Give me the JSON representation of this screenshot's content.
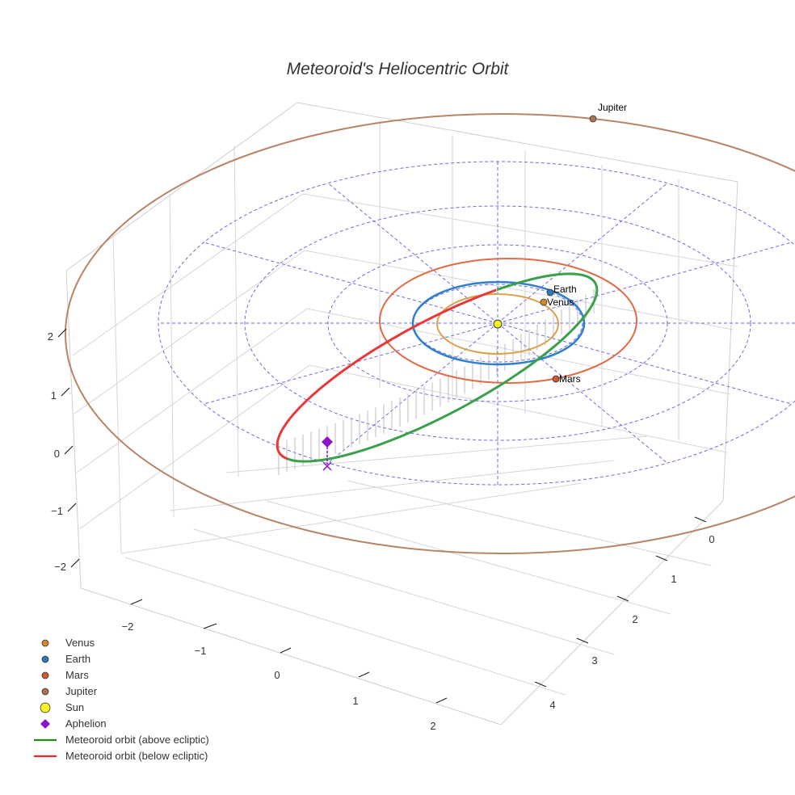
{
  "chart_data": {
    "type": "scatter3d",
    "title": "Meteoroid's Heliocentric Orbit",
    "axes": {
      "x": {
        "ticks": [
          -2,
          -1,
          0,
          1,
          2
        ]
      },
      "y": {
        "ticks": [
          0,
          1,
          2,
          3,
          4
        ]
      },
      "z": {
        "ticks": [
          2,
          1,
          0,
          -1,
          -2
        ]
      }
    },
    "grid": true,
    "legend_position": "bottom-left",
    "planets": [
      {
        "name": "Venus",
        "label": "Venus",
        "color": "#d4872a"
      },
      {
        "name": "Earth",
        "label": "Earth",
        "color": "#2a7bbd"
      },
      {
        "name": "Mars",
        "label": "Mars",
        "color": "#d1572c"
      },
      {
        "name": "Jupiter",
        "label": "Jupiter",
        "color": "#b0714f"
      }
    ],
    "orbit_colors": {
      "Venus": "#d9a24b",
      "Earth": "#2f7fcf",
      "Mars": "#e06b45",
      "Jupiter": "#b88466",
      "above": "#3aa04a",
      "below": "#e8383a",
      "reference_grid": "#6a6ae8"
    },
    "sun": {
      "label": "Sun",
      "color": "#f5f022"
    },
    "aphelion": {
      "label": "Aphelion",
      "color": "#8a16c9"
    },
    "legend": [
      {
        "label": "Venus",
        "kind": "dot",
        "color": "#d4872a"
      },
      {
        "label": "Earth",
        "kind": "dot",
        "color": "#2a7bbd"
      },
      {
        "label": "Mars",
        "kind": "dot",
        "color": "#d1572c"
      },
      {
        "label": "Jupiter",
        "kind": "dot",
        "color": "#b0714f"
      },
      {
        "label": "Sun",
        "kind": "sun",
        "color": "#f5f022"
      },
      {
        "label": "Aphelion",
        "kind": "diamond",
        "color": "#8a16c9"
      },
      {
        "label": "Meteoroid orbit (above ecliptic)",
        "kind": "line",
        "color": "#1f8c1f"
      },
      {
        "label": "Meteoroid orbit (below ecliptic)",
        "kind": "line",
        "color": "#e8282a"
      }
    ]
  }
}
